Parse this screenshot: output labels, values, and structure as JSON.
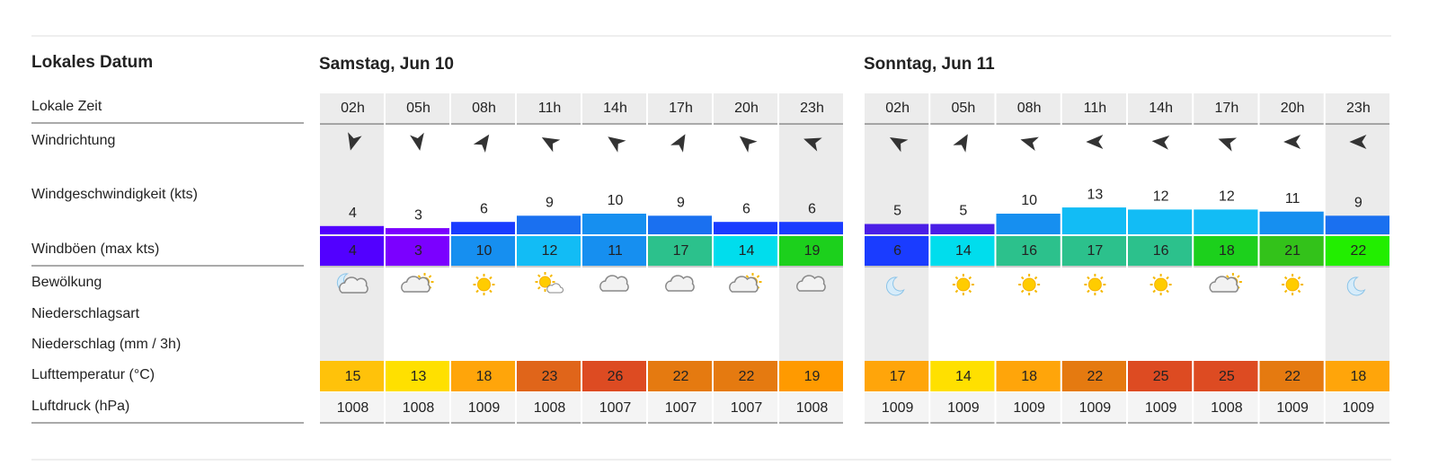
{
  "header": {
    "title": "Lokales Datum"
  },
  "row_labels": [
    "Lokale Zeit",
    "Windrichtung",
    "Windgeschwindigkeit (kts)",
    "Windböen (max kts)",
    "Bewölkung",
    "Niederschlagsart",
    "Niederschlag (mm / 3h)",
    "Lufttemperatur (°C)",
    "Luftdruck (hPa)"
  ],
  "days": [
    {
      "title": "Samstag, Jun 10",
      "hours": [
        "02h",
        "05h",
        "08h",
        "11h",
        "14h",
        "17h",
        "20h",
        "23h"
      ],
      "wind_speed": [
        4,
        3,
        6,
        9,
        10,
        9,
        6,
        6
      ],
      "wind_gusts": [
        4,
        3,
        10,
        12,
        11,
        17,
        14,
        19
      ],
      "temperature": [
        15,
        13,
        18,
        23,
        26,
        22,
        22,
        19
      ],
      "pressure": [
        1008,
        1008,
        1009,
        1008,
        1007,
        1007,
        1007,
        1008
      ]
    },
    {
      "title": "Sonntag, Jun 11",
      "hours": [
        "02h",
        "05h",
        "08h",
        "11h",
        "14h",
        "17h",
        "20h",
        "23h"
      ],
      "wind_speed": [
        5,
        5,
        10,
        13,
        12,
        12,
        11,
        9
      ],
      "wind_gusts": [
        6,
        14,
        16,
        17,
        16,
        18,
        21,
        22
      ],
      "temperature": [
        17,
        14,
        18,
        22,
        25,
        25,
        22,
        18
      ],
      "pressure": [
        1009,
        1009,
        1009,
        1009,
        1009,
        1008,
        1009,
        1009
      ]
    }
  ]
}
